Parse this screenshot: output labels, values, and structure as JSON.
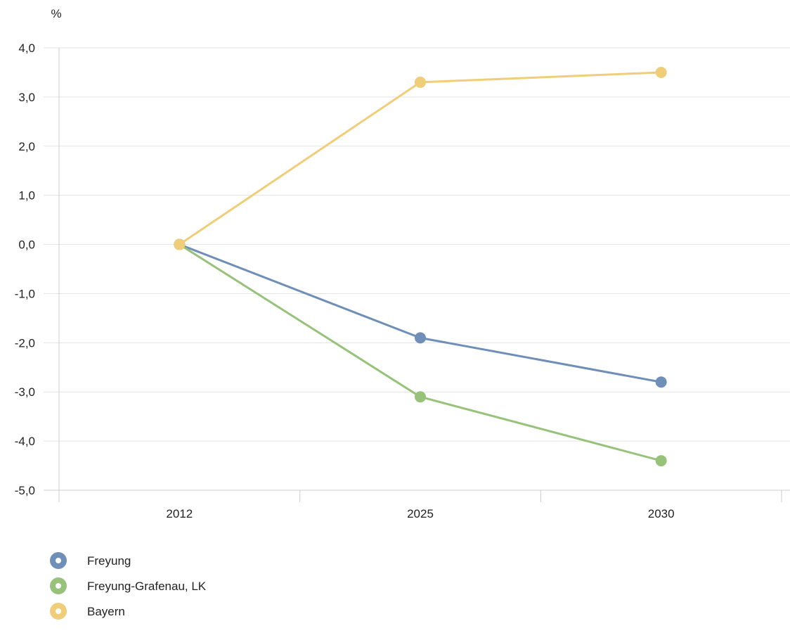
{
  "chart_data": {
    "type": "line",
    "title": "",
    "xlabel": "",
    "ylabel": "%",
    "categories": [
      "2012",
      "2025",
      "2030"
    ],
    "ylim": [
      -5.0,
      4.0
    ],
    "yticks": [
      4.0,
      3.0,
      2.0,
      1.0,
      0.0,
      -1.0,
      -2.0,
      -3.0,
      -4.0,
      -5.0
    ],
    "ytick_labels": [
      "4,0",
      "3,0",
      "2,0",
      "1,0",
      "0,0",
      "-1,0",
      "-2,0",
      "-3,0",
      "-4,0",
      "-5,0"
    ],
    "grid": true,
    "legend_position": "bottom-left",
    "series": [
      {
        "name": "Freyung",
        "color": "#6f8fb8",
        "values": [
          0.0,
          -1.9,
          -2.8
        ]
      },
      {
        "name": "Freyung-Grafenau, LK",
        "color": "#96c27a",
        "values": [
          0.0,
          -3.1,
          -4.4
        ]
      },
      {
        "name": "Bayern",
        "color": "#f0cd78",
        "values": [
          0.0,
          3.3,
          3.5
        ]
      }
    ]
  }
}
